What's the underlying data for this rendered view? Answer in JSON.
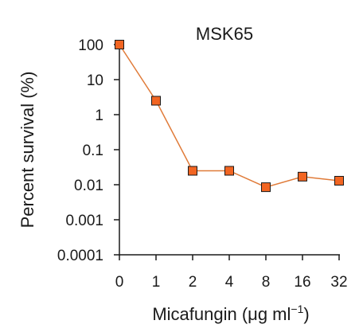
{
  "chart_data": {
    "type": "line",
    "title": "MSK65",
    "xlabel": {
      "main": "Micafungin (μg ml",
      "superscript": "−1",
      "close": ")"
    },
    "ylabel": "Percent survival (%)",
    "y_scale": "log",
    "ylim": [
      0.0001,
      100
    ],
    "categories": [
      "0",
      "1",
      "2",
      "4",
      "8",
      "16",
      "32"
    ],
    "y_ticks": [
      {
        "value": 100,
        "label": "100"
      },
      {
        "value": 10,
        "label": "10"
      },
      {
        "value": 1,
        "label": "1"
      },
      {
        "value": 0.1,
        "label": "0.1"
      },
      {
        "value": 0.01,
        "label": "0.01"
      },
      {
        "value": 0.001,
        "label": "0.001"
      },
      {
        "value": 0.0001,
        "label": "0.0001"
      }
    ],
    "series": [
      {
        "values": [
          100,
          2.5,
          0.025,
          0.025,
          0.0085,
          0.017,
          0.013
        ]
      }
    ],
    "colors": {
      "marker_fill": "#f26522",
      "marker_stroke": "#1a1a1a",
      "line": "#e07b39",
      "axis": "#1a1a1a"
    },
    "marker": "square",
    "grid": false
  }
}
